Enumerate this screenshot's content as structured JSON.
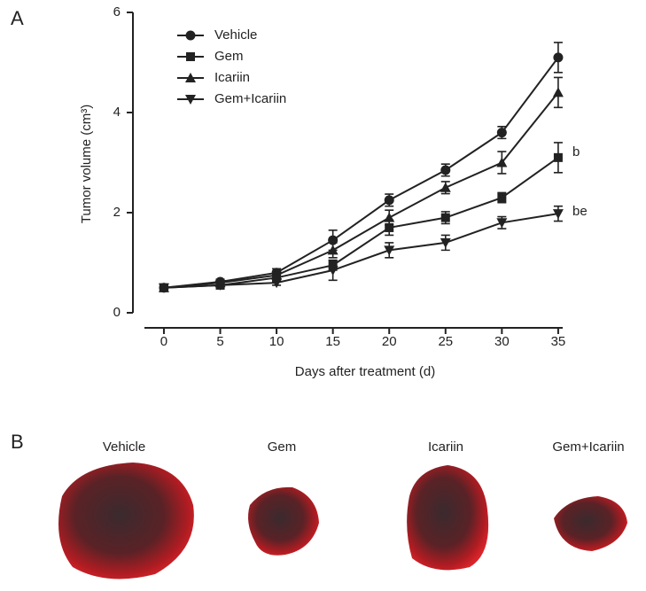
{
  "chart_data": {
    "type": "line",
    "xlabel": "Days after treatment (d)",
    "ylabel": "Tumor volume (cm³)",
    "x": [
      0,
      5,
      10,
      15,
      20,
      25,
      30,
      35
    ],
    "series": [
      {
        "name": "Vehicle",
        "color": "#222222",
        "marker": "circle",
        "values": [
          0.5,
          0.62,
          0.8,
          1.45,
          2.25,
          2.85,
          3.6,
          5.1
        ],
        "errors": [
          0.05,
          0.05,
          0.08,
          0.2,
          0.12,
          0.12,
          0.12,
          0.3
        ]
      },
      {
        "name": "Gem",
        "color": "#222222",
        "marker": "square",
        "values": [
          0.5,
          0.55,
          0.7,
          0.95,
          1.7,
          1.9,
          2.3,
          3.1
        ],
        "errors": [
          0.05,
          0.05,
          0.08,
          0.1,
          0.15,
          0.12,
          0.1,
          0.3
        ]
      },
      {
        "name": "Icariin",
        "color": "#222222",
        "marker": "triangle",
        "values": [
          0.5,
          0.6,
          0.75,
          1.25,
          1.9,
          2.5,
          3.0,
          4.4
        ],
        "errors": [
          0.05,
          0.05,
          0.08,
          0.15,
          0.15,
          0.12,
          0.22,
          0.3
        ]
      },
      {
        "name": "Gem+Icariin",
        "color": "#222222",
        "marker": "triangle-down",
        "values": [
          0.5,
          0.55,
          0.6,
          0.85,
          1.25,
          1.4,
          1.8,
          1.98
        ],
        "errors": [
          0.05,
          0.05,
          0.05,
          0.2,
          0.15,
          0.15,
          0.12,
          0.15
        ]
      }
    ],
    "annotations": [
      "b",
      "be"
    ],
    "xlim": [
      -2.75,
      35.4
    ],
    "xticks": [
      0,
      5,
      10,
      15,
      20,
      25,
      30,
      35
    ],
    "ylim": [
      0,
      6
    ],
    "yticks": [
      0,
      2,
      4,
      6
    ],
    "legend": "upper left"
  },
  "panel_labels": [
    "A",
    "B"
  ],
  "photos": {
    "labels": [
      "Vehicle",
      "Gem",
      "Icariin",
      "Gem+Icariin"
    ]
  }
}
